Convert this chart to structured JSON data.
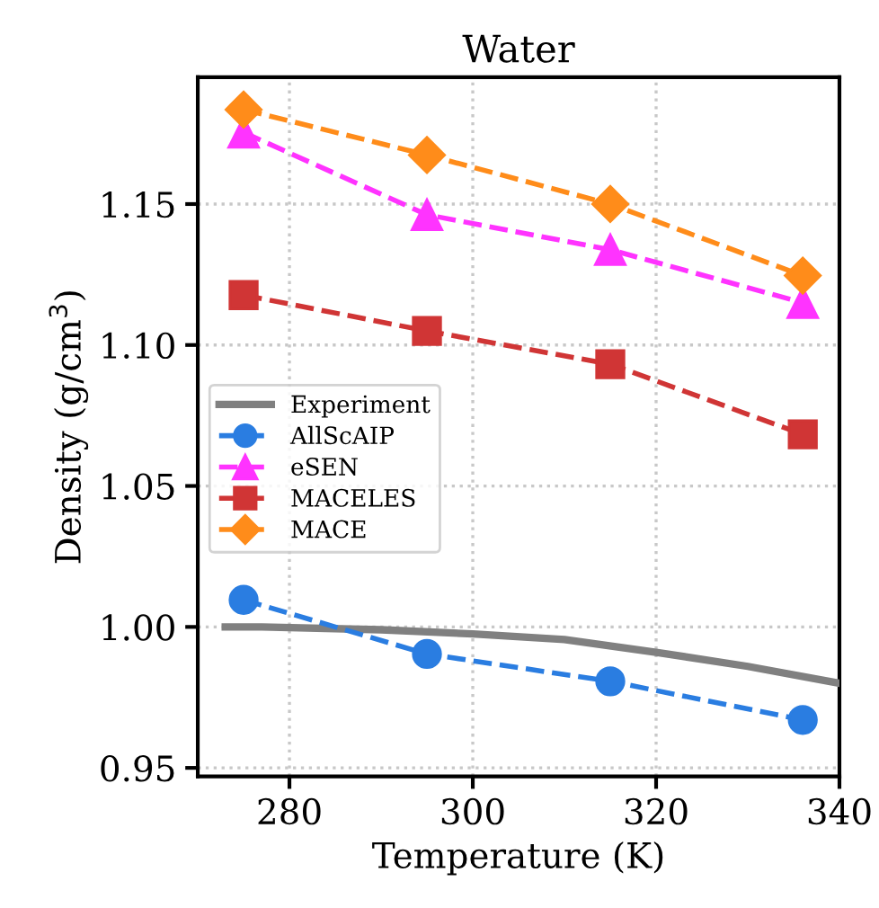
{
  "chart_data": {
    "type": "line",
    "title": "Water",
    "xlabel": "Temperature (K)",
    "ylabel": "Density (g/cm$^{3}$)",
    "xlim": [
      270,
      340
    ],
    "xticks": [
      280,
      300,
      320,
      340
    ],
    "ylim": [
      0.947,
      1.195
    ],
    "yticks": [
      {
        "value": 0.95,
        "label": "0.95"
      },
      {
        "value": 1.0,
        "label": "1.00"
      },
      {
        "value": 1.05,
        "label": "1.05"
      },
      {
        "value": 1.1,
        "label": "1.10"
      },
      {
        "value": 1.15,
        "label": "1.15"
      }
    ],
    "grid": true,
    "legend": "center left",
    "series": [
      {
        "name": "Experiment",
        "color": "#808080",
        "marker": "none",
        "line_style": "solid",
        "x": [
          273,
          277,
          290,
          300,
          310,
          320,
          330,
          340
        ],
        "values": [
          1.0,
          1.0,
          0.999,
          0.9975,
          0.9955,
          0.991,
          0.986,
          0.98
        ]
      },
      {
        "name": "AllScAIP",
        "color": "#2a7de1",
        "marker": "circle",
        "line_style": "dashed",
        "x": [
          275,
          295,
          315,
          336
        ],
        "values": [
          1.0096,
          0.9904,
          0.9807,
          0.967
        ]
      },
      {
        "name": "eSEN",
        "color": "#ff33ff",
        "marker": "triangle",
        "line_style": "dashed",
        "x": [
          275,
          295,
          315,
          336
        ],
        "values": [
          1.1754,
          1.1462,
          1.1338,
          1.115
        ]
      },
      {
        "name": "MACELES",
        "color": "#d03535",
        "marker": "square",
        "line_style": "dashed",
        "x": [
          275,
          295,
          315,
          336
        ],
        "values": [
          1.1177,
          1.105,
          1.0932,
          1.0683
        ]
      },
      {
        "name": "MACE",
        "color": "#ff8c1a",
        "marker": "diamond",
        "line_style": "dashed",
        "x": [
          275,
          295,
          315,
          336
        ],
        "values": [
          1.1835,
          1.1674,
          1.15,
          1.1246
        ]
      }
    ]
  }
}
